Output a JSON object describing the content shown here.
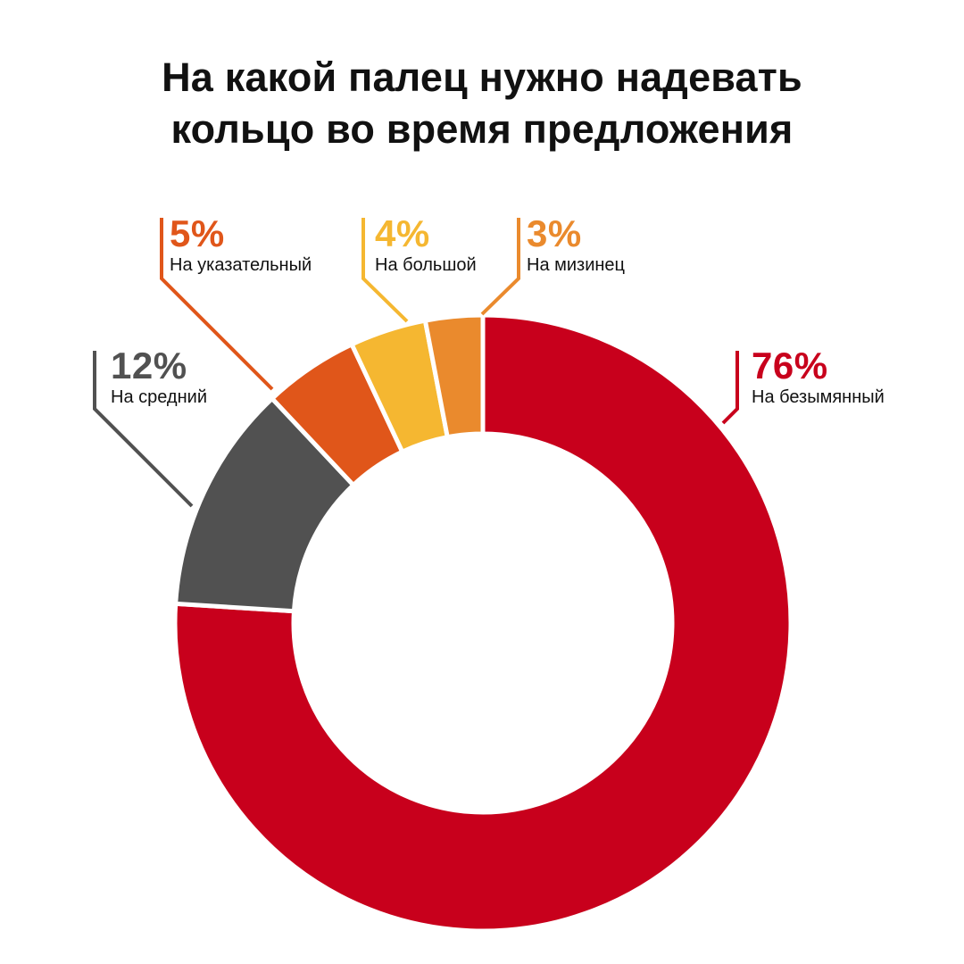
{
  "title": {
    "line1": "На какой палец нужно надевать",
    "line2": "кольцо во время предложения"
  },
  "chart_data": {
    "type": "pie",
    "variant": "donut",
    "title": "На какой палец нужно надевать кольцо во время предложения",
    "start": "top",
    "direction": "clockwise",
    "slices": [
      {
        "key": "ring",
        "label": "На безымянный",
        "value": 76,
        "value_text": "76%",
        "color": "#C8001C"
      },
      {
        "key": "middle",
        "label": "На средний",
        "value": 12,
        "value_text": "12%",
        "color": "#515151"
      },
      {
        "key": "index",
        "label": "На указательный",
        "value": 5,
        "value_text": "5%",
        "color": "#E0561A"
      },
      {
        "key": "thumb",
        "label": "На большой",
        "value": 4,
        "value_text": "4%",
        "color": "#F5B731"
      },
      {
        "key": "pinky",
        "label": "На мизинец",
        "value": 3,
        "value_text": "3%",
        "color": "#EA8A2D"
      }
    ]
  }
}
